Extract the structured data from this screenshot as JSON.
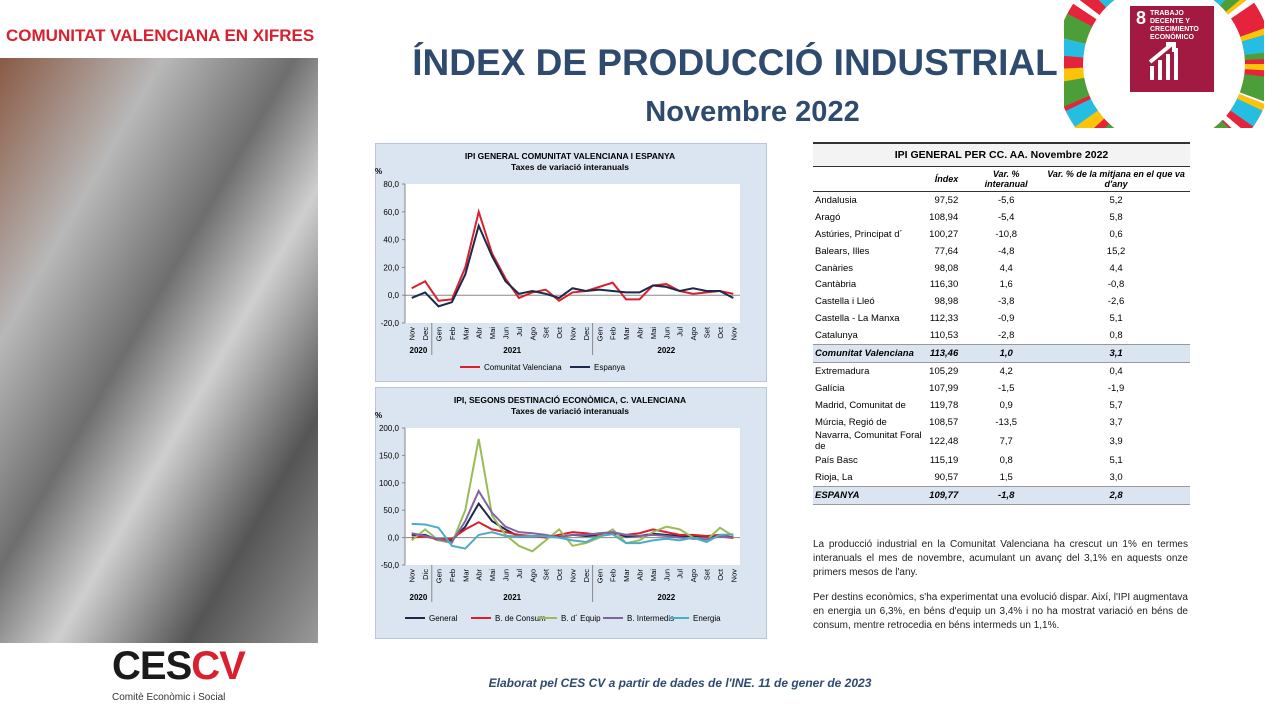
{
  "header": {
    "region": "COMUNITAT VALENCIANA EN XIFRES",
    "title": "ÍNDEX DE PRODUCCIÓ INDUSTRIAL",
    "subtitle": "Novembre 2022",
    "sdg_number": "8",
    "sdg_text": "TRABAJO DECENTE Y CRECIMIENTO ECONÓMICO"
  },
  "chart_data": [
    {
      "type": "line",
      "title": "IPI GENERAL COMUNITAT VALENCIANA I ESPANYA",
      "subtitle": "Taxes de variació interanuals",
      "y_label": "%",
      "categories": [
        "Nov",
        "Dec",
        "Gen",
        "Feb",
        "Mar",
        "Abr",
        "Mai",
        "Jun",
        "Jul",
        "Ago",
        "Set",
        "Oct",
        "Nov",
        "Dec",
        "Gen",
        "Feb",
        "Mar",
        "Abr",
        "Mai",
        "Jun",
        "Jul",
        "Ago",
        "Set",
        "Oct",
        "Nov"
      ],
      "years": [
        "2020",
        "2021",
        "2022"
      ],
      "ylim": [
        -20,
        80
      ],
      "yticks": [
        {
          "value": -20,
          "label": "-20,0"
        },
        {
          "value": 0,
          "label": "0,0"
        },
        {
          "value": 20,
          "label": "20,0"
        },
        {
          "value": 40,
          "label": "40,0"
        },
        {
          "value": 60,
          "label": "60,0"
        },
        {
          "value": 80,
          "label": "80,0"
        }
      ],
      "grid": false,
      "series": [
        {
          "name": "Comunitat Valenciana",
          "color": "#d9202f",
          "values": [
            5,
            10,
            -4,
            -3,
            20,
            60,
            30,
            12,
            -2,
            2,
            4,
            -4,
            2,
            3,
            6,
            9,
            -3,
            -3,
            7,
            8,
            3,
            1,
            2,
            3,
            1
          ]
        },
        {
          "name": "Espanya",
          "color": "#1b2a4a",
          "values": [
            -2,
            2,
            -8,
            -5,
            15,
            50,
            28,
            10,
            1,
            3,
            1,
            -2,
            5,
            3,
            4,
            3,
            2,
            2,
            7,
            6,
            3,
            5,
            3,
            3,
            -2
          ]
        }
      ]
    },
    {
      "type": "line",
      "title": "IPI, SEGONS DESTINACIÓ ECONÒMICA,  C. VALENCIANA",
      "subtitle": "Taxes de variació interanuals",
      "y_label": "%",
      "categories": [
        "Nov",
        "Dic",
        "Gen",
        "Feb",
        "Mar",
        "Abr",
        "Mai",
        "Jun",
        "Jul",
        "Ago",
        "Set",
        "Oct",
        "Nov",
        "Dec",
        "Gen",
        "Feb",
        "Mar",
        "Abr",
        "Mai",
        "Jun",
        "Jul",
        "Ago",
        "Set",
        "Oct",
        "Nov"
      ],
      "years": [
        "2020",
        "2021",
        "2022"
      ],
      "ylim": [
        -50,
        200
      ],
      "yticks": [
        {
          "value": -50,
          "label": "-50,0"
        },
        {
          "value": 0,
          "label": "0,0"
        },
        {
          "value": 50,
          "label": "50,0"
        },
        {
          "value": 100,
          "label": "100,0"
        },
        {
          "value": 150,
          "label": "150,0"
        },
        {
          "value": 200,
          "label": "200,0"
        }
      ],
      "grid": false,
      "series": [
        {
          "name": "General",
          "color": "#1b2a4a",
          "values": [
            5,
            5,
            -5,
            -5,
            20,
            62,
            30,
            15,
            2,
            3,
            2,
            1,
            5,
            3,
            4,
            8,
            2,
            3,
            7,
            5,
            3,
            3,
            2,
            2,
            1
          ]
        },
        {
          "name": "B. de Consum",
          "color": "#d9202f",
          "values": [
            0,
            2,
            -3,
            -2,
            15,
            28,
            15,
            10,
            5,
            3,
            0,
            5,
            10,
            8,
            5,
            8,
            5,
            8,
            15,
            10,
            5,
            5,
            3,
            5,
            0
          ]
        },
        {
          "name": "B. d´ Equip",
          "color": "#9bbb59",
          "values": [
            -5,
            15,
            -5,
            -10,
            50,
            180,
            40,
            5,
            -15,
            -25,
            -5,
            15,
            -15,
            -10,
            0,
            15,
            -10,
            -5,
            10,
            20,
            15,
            0,
            -5,
            18,
            3
          ]
        },
        {
          "name": "B. Intermedis",
          "color": "#8064a2",
          "values": [
            8,
            3,
            -3,
            -8,
            30,
            85,
            45,
            20,
            10,
            8,
            5,
            0,
            5,
            5,
            8,
            10,
            5,
            3,
            5,
            3,
            0,
            -2,
            -3,
            2,
            -1
          ]
        },
        {
          "name": "Energia",
          "color": "#4bacc6",
          "values": [
            25,
            24,
            18,
            -15,
            -20,
            5,
            10,
            3,
            2,
            3,
            2,
            0,
            -5,
            -8,
            3,
            6,
            -10,
            -10,
            -5,
            -2,
            -5,
            0,
            -8,
            5,
            6
          ]
        }
      ]
    }
  ],
  "table": {
    "title": "IPI GENERAL PER CC. AA. Novembre 2022",
    "columns": [
      "",
      "Índex",
      "Var. % interanual",
      "Var. % de la mitjana en el que va d'any"
    ],
    "rows": [
      [
        "Andalusia",
        "97,52",
        "-5,6",
        "5,2"
      ],
      [
        "Aragó",
        "108,94",
        "-5,4",
        "5,8"
      ],
      [
        "Astúries, Principat d´",
        "100,27",
        "-10,8",
        "0,6"
      ],
      [
        "Balears, Illes",
        "77,64",
        "-4,8",
        "15,2"
      ],
      [
        "Canàries",
        "98,08",
        "4,4",
        "4,4"
      ],
      [
        "Cantàbria",
        "116,30",
        "1,6",
        "-0,8"
      ],
      [
        "Castella i Lleó",
        "98,98",
        "-3,8",
        "-2,6"
      ],
      [
        "Castella - La Manxa",
        "112,33",
        "-0,9",
        "5,1"
      ],
      [
        "Catalunya",
        "110,53",
        "-2,8",
        "0,8"
      ],
      [
        "Comunitat Valenciana",
        "113,46",
        "1,0",
        "3,1"
      ],
      [
        "Extremadura",
        "105,29",
        "4,2",
        "0,4"
      ],
      [
        "Galícia",
        "107,99",
        "-1,5",
        "-1,9"
      ],
      [
        "Madrid, Comunitat de",
        "119,78",
        "0,9",
        "5,7"
      ],
      [
        "Múrcia, Regió de",
        "108,57",
        "-13,5",
        "3,7"
      ],
      [
        "Navarra, Comunitat Foral de",
        "122,48",
        "7,7",
        "3,9"
      ],
      [
        "País Basc",
        "115,19",
        "0,8",
        "5,1"
      ],
      [
        "Rioja, La",
        "90,57",
        "1,5",
        "3,0"
      ],
      [
        "ESPANYA",
        "109,77",
        "-1,8",
        "2,8"
      ]
    ]
  },
  "paragraphs": [
    "La producció industrial en la Comunitat Valenciana ha crescut un 1% en termes interanuals el mes de novembre, acumulant un avanç del 3,1% en aquests onze primers mesos de l'any.",
    "Per destins econòmics, s'ha experimentat una evolució dispar. Així, l'IPI augmentava en energia un 6,3%, en béns d'equip un 3,4% i no ha mostrat variació en béns de consum, mentre retrocedia en béns intermeds un 1,1%."
  ],
  "footer": {
    "logo_ces": "CES",
    "logo_cv": "CV",
    "logo_caption": "Comitè Econòmic i Social",
    "source": "Elaborat pel CES CV a partir de dades de l'INE. 11 de gener de 2023"
  }
}
